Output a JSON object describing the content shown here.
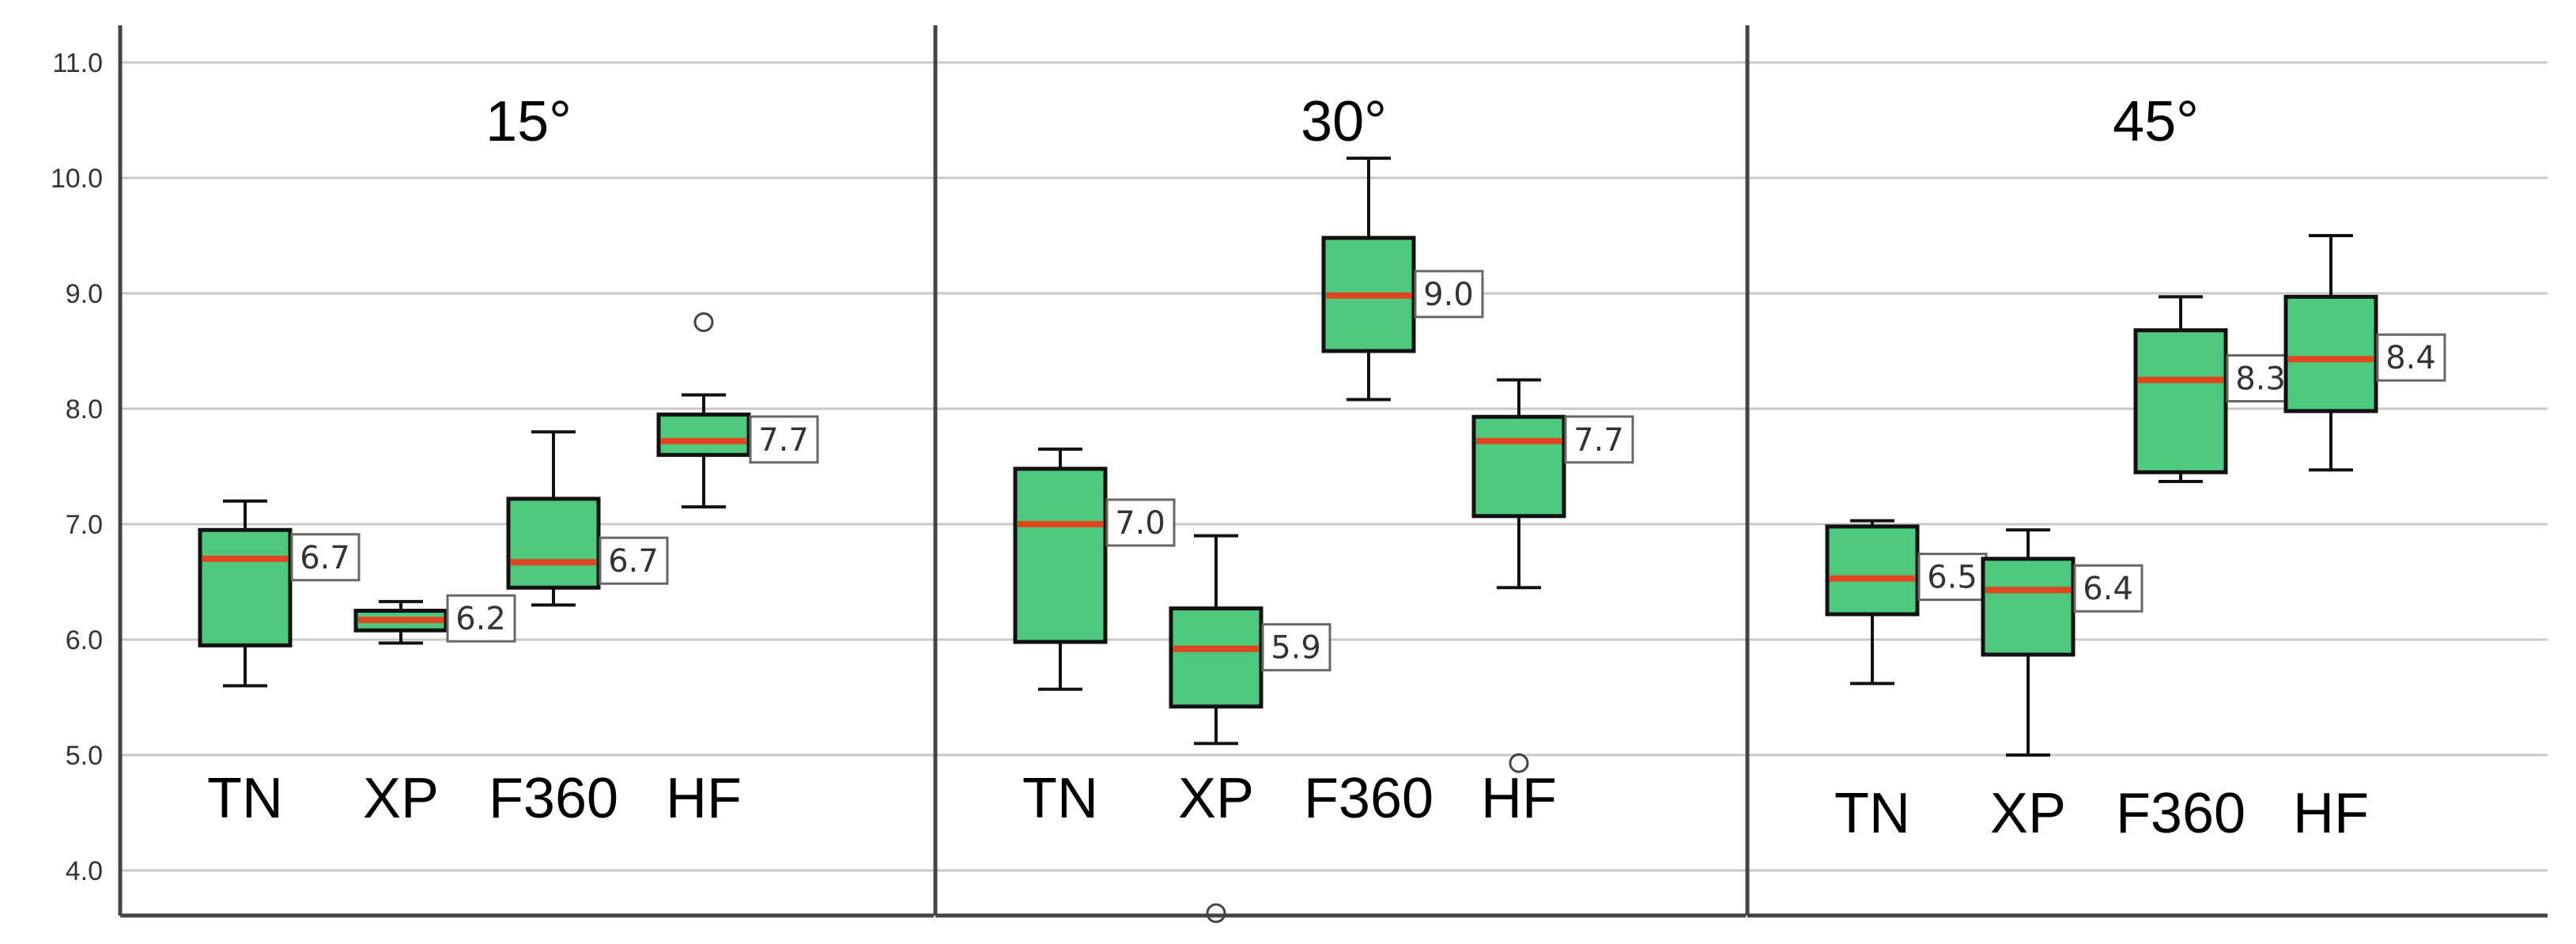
{
  "chart_data": {
    "type": "box",
    "ylim": [
      3.7,
      11.3
    ],
    "yticks": [
      "4.0",
      "5.0",
      "6.0",
      "7.0",
      "8.0",
      "9.0",
      "10.0",
      "11.0"
    ],
    "grid": true,
    "colors": {
      "box_fill": "#4ec97e",
      "median": "#e0461e",
      "grid": "#c8c8c8",
      "axis": "#444444"
    },
    "panels": [
      {
        "title": "15°",
        "categories": [
          "TN",
          "XP",
          "F360",
          "HF"
        ],
        "boxes": [
          {
            "category": "TN",
            "whisker_low": 5.6,
            "q1": 5.95,
            "median": 6.7,
            "q3": 6.95,
            "whisker_high": 7.2,
            "label": "6.7",
            "outliers": []
          },
          {
            "category": "XP",
            "whisker_low": 5.97,
            "q1": 6.08,
            "median": 6.17,
            "q3": 6.25,
            "whisker_high": 6.33,
            "label": "6.2",
            "outliers": []
          },
          {
            "category": "F360",
            "whisker_low": 6.3,
            "q1": 6.45,
            "median": 6.67,
            "q3": 7.22,
            "whisker_high": 7.8,
            "label": "6.7",
            "outliers": []
          },
          {
            "category": "HF",
            "whisker_low": 7.15,
            "q1": 7.6,
            "median": 7.72,
            "q3": 7.95,
            "whisker_high": 8.12,
            "label": "7.7",
            "outliers": [
              8.75
            ]
          }
        ]
      },
      {
        "title": "30°",
        "categories": [
          "TN",
          "XP",
          "F360",
          "HF"
        ],
        "boxes": [
          {
            "category": "TN",
            "whisker_low": 5.57,
            "q1": 5.98,
            "median": 7.0,
            "q3": 7.48,
            "whisker_high": 7.65,
            "label": "7.0",
            "outliers": []
          },
          {
            "category": "XP",
            "whisker_low": 5.1,
            "q1": 5.42,
            "median": 5.92,
            "q3": 6.27,
            "whisker_high": 6.9,
            "label": "5.9",
            "outliers": [
              3.63
            ]
          },
          {
            "category": "F360",
            "whisker_low": 8.08,
            "q1": 8.5,
            "median": 8.98,
            "q3": 9.48,
            "whisker_high": 10.17,
            "label": "9.0",
            "outliers": []
          },
          {
            "category": "HF",
            "whisker_low": 6.45,
            "q1": 7.07,
            "median": 7.72,
            "q3": 7.93,
            "whisker_high": 8.25,
            "label": "7.7",
            "outliers": [
              4.93
            ]
          }
        ]
      },
      {
        "title": "45°",
        "categories": [
          "TN",
          "XP",
          "F360",
          "HF"
        ],
        "boxes": [
          {
            "category": "TN",
            "whisker_low": 5.62,
            "q1": 6.22,
            "median": 6.53,
            "q3": 6.98,
            "whisker_high": 7.03,
            "label": "6.5",
            "outliers": []
          },
          {
            "category": "XP",
            "whisker_low": 5.0,
            "q1": 5.87,
            "median": 6.43,
            "q3": 6.7,
            "whisker_high": 6.95,
            "label": "6.4",
            "outliers": []
          },
          {
            "category": "F360",
            "whisker_low": 7.37,
            "q1": 7.45,
            "median": 8.25,
            "q3": 8.68,
            "whisker_high": 8.97,
            "label": "8.3",
            "outliers": []
          },
          {
            "category": "HF",
            "whisker_low": 7.47,
            "q1": 7.98,
            "median": 8.43,
            "q3": 8.97,
            "whisker_high": 9.5,
            "label": "8.4",
            "outliers": []
          }
        ]
      }
    ]
  }
}
